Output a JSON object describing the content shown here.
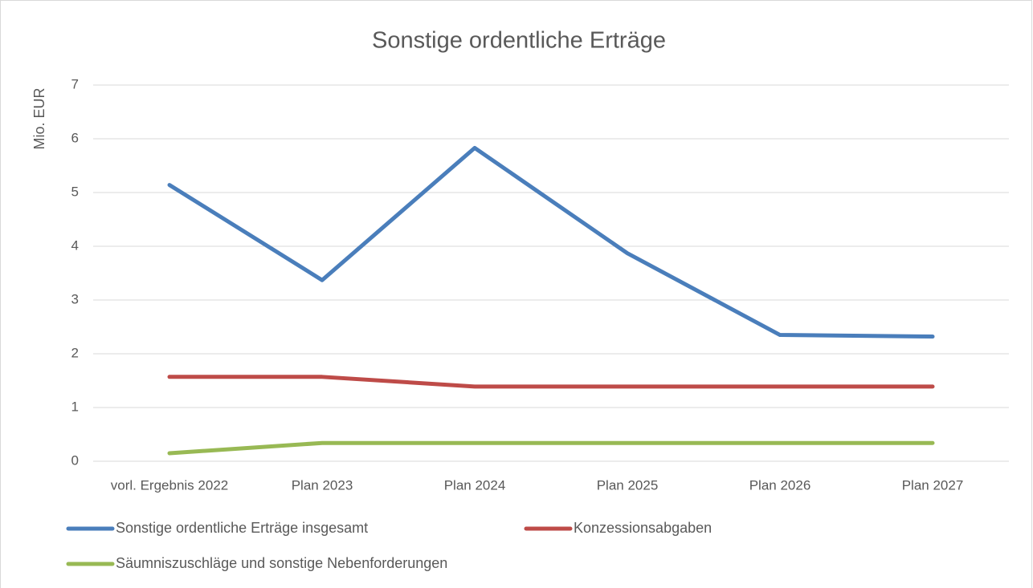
{
  "chart_data": {
    "type": "line",
    "title": "Sonstige ordentliche Erträge",
    "y_label": "Mio. EUR",
    "categories": [
      "vorl. Ergebnis 2022",
      "Plan 2023",
      "Plan 2024",
      "Plan 2025",
      "Plan 2026",
      "Plan 2027"
    ],
    "series": [
      {
        "name": "Sonstige ordentliche Erträge insgesamt",
        "color": "#4a7ebb",
        "values": [
          5.14,
          3.37,
          5.83,
          3.87,
          2.35,
          2.32
        ]
      },
      {
        "name": "Konzessionsabgaben",
        "color": "#be4b48",
        "values": [
          1.57,
          1.57,
          1.39,
          1.39,
          1.39,
          1.39
        ]
      },
      {
        "name": "Säumniszuschläge und sonstige Nebenforderungen",
        "color": "#98b954",
        "values": [
          0.15,
          0.34,
          0.34,
          0.34,
          0.34,
          0.34
        ]
      }
    ],
    "ylim": [
      0,
      7
    ],
    "yticks": [
      0,
      1,
      2,
      3,
      4,
      5,
      6,
      7
    ],
    "grid": true,
    "legend": "bottom"
  }
}
